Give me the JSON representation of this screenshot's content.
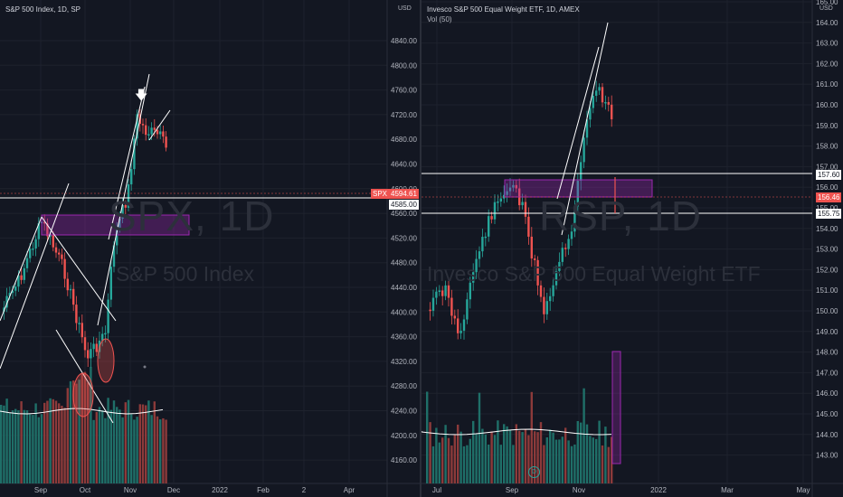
{
  "left_chart": {
    "title": "S&P 500 Index, 1D, SP",
    "watermark_symbol": "SPX, 1D",
    "watermark_name": "S&P 500 Index",
    "currency": "USD",
    "price_axis": [
      "4840.00",
      "4800.00",
      "4760.00",
      "4720.00",
      "4680.00",
      "4640.00",
      "4600.00",
      "4560.00",
      "4520.00",
      "4480.00",
      "4440.00",
      "4400.00",
      "4360.00",
      "4320.00",
      "4280.00",
      "4240.00",
      "4200.00",
      "4160.00"
    ],
    "time_axis": [
      "Sep",
      "Oct",
      "Nov",
      "Dec",
      "2022",
      "Feb",
      "2",
      "Apr"
    ],
    "price_tag_symbol": "SPX",
    "price_tag_value": "4594.61",
    "level_tag": "4585.00",
    "colors": {
      "up": "#26a69a",
      "down": "#ef5350",
      "zone": "#9c27b0",
      "line": "#ffffff"
    }
  },
  "right_chart": {
    "title": "Invesco S&P 500 Equal Weight ETF, 1D, AMEX",
    "subtitle": "Vol (50)",
    "watermark_symbol": "RSP, 1D",
    "watermark_name": "Invesco S&P 500 Equal Weight ETF",
    "currency": "USD",
    "price_axis": [
      "165.00",
      "164.00",
      "163.00",
      "162.00",
      "161.00",
      "160.00",
      "159.00",
      "158.00",
      "157.00",
      "156.00",
      "155.00",
      "154.00",
      "153.00",
      "152.00",
      "151.00",
      "150.00",
      "149.00",
      "148.00",
      "147.00",
      "146.00",
      "145.00",
      "144.00",
      "143.00"
    ],
    "time_axis": [
      "Jul",
      "Sep",
      "Nov",
      "2022",
      "Mar",
      "May"
    ],
    "level_upper": "157.60",
    "price_tag_value": "156.46",
    "level_lower": "155.75",
    "colors": {
      "up": "#26a69a",
      "down": "#ef5350",
      "zone": "#9c27b0",
      "line": "#ffffff"
    }
  }
}
